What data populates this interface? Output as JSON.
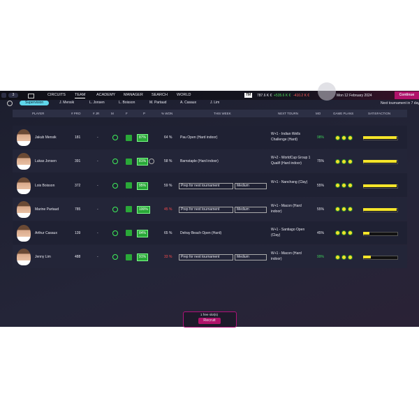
{
  "nav": {
    "back_count": "3",
    "items": [
      "CIRCUITS",
      "TEAM",
      "ACADEMY",
      "MANAGER",
      "SEARCH",
      "WORLD"
    ],
    "logo": "TM",
    "balance": "787.6 K €",
    "income": "+535.6 K €",
    "expense": "-410.2 K €",
    "date": "Mon 12 February 2024",
    "continue": "Continue"
  },
  "tabs": {
    "items": [
      "Supervision",
      "J. Mensik",
      "L. Jonsen",
      "L. Boisson",
      "M. Partaud",
      "A. Casaux",
      "J. Lim"
    ],
    "next_tournament": "Next tournament in 7 days"
  },
  "table": {
    "headers": [
      "PLAYER",
      "# PRO",
      "# JR",
      "M",
      "F",
      "P",
      "% WON",
      "THIS WEEK",
      "NEXT TOURN",
      "MO",
      "GAME PLANS",
      "SATISFACTION"
    ],
    "rows": [
      {
        "player": "Jakub Mensik",
        "pro": "181",
        "jr": "-",
        "p": "87%",
        "won": "64 %",
        "this_week": "Pau Open (Hard indoor)",
        "next": "W+1 - Indian Wells Challenge (Hard)",
        "mo": "98%",
        "satisfaction": 100
      },
      {
        "player": "Lukas Jonsen",
        "pro": "391",
        "jr": "-",
        "p": "81%",
        "won": "58 %",
        "this_week": "Barnstaple (Hard indoor)",
        "next": "W+2 - WorldCup Group 1 Qualif (Hard indoor)",
        "mo": "75%",
        "satisfaction": 100
      },
      {
        "player": "Lois Boisson",
        "pro": "372",
        "jr": "-",
        "p": "95%",
        "won": "59 %",
        "plan": "Prep for next tournament",
        "intensity": "Medium",
        "next": "W+1 - Nanchang (Clay)",
        "mo": "55%",
        "satisfaction": 100
      },
      {
        "player": "Marine Partaud",
        "pro": "785",
        "jr": "-",
        "p": "100%",
        "won": "45 %",
        "plan": "Prep for next tournament",
        "intensity": "Medium",
        "next": "W+1 - Macon (Hard indoor)",
        "mo": "55%",
        "satisfaction": 100
      },
      {
        "player": "Arthur Casaux",
        "pro": "139",
        "jr": "-",
        "p": "84%",
        "won": "65 %",
        "this_week": "Delray Beach Open (Hard)",
        "next": "W+1 - Santiago Open (Clay)",
        "mo": "45%",
        "satisfaction": 18
      },
      {
        "player": "Jenny Lim",
        "pro": "488",
        "jr": "-",
        "p": "91%",
        "won": "33 %",
        "plan": "Prep for next tournament",
        "intensity": "Medium",
        "next": "W+1 - Macon (Hard indoor)",
        "mo": "99%",
        "satisfaction": 22
      }
    ]
  },
  "recruit": {
    "slots": "1 free slot(s)",
    "button": "Recruit"
  }
}
